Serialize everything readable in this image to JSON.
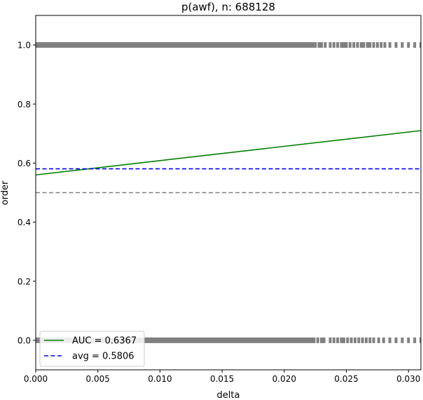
{
  "chart_data": {
    "type": "scatter",
    "title": "p(awf), n: 688128",
    "xlabel": "delta",
    "ylabel": "order",
    "xlim": [
      0.0,
      0.031
    ],
    "ylim": [
      -0.1,
      1.1
    ],
    "xticks": [
      0.0,
      0.005,
      0.01,
      0.015,
      0.02,
      0.025,
      0.03
    ],
    "xtick_labels": [
      "0.000",
      "0.005",
      "0.010",
      "0.015",
      "0.020",
      "0.025",
      "0.030"
    ],
    "yticks": [
      0.0,
      0.2,
      0.4,
      0.6,
      0.8,
      1.0
    ],
    "ytick_labels": [
      "0.0",
      "0.2",
      "0.4",
      "0.6",
      "0.8",
      "1.0"
    ],
    "grid": false,
    "legend_position": "bottom-left",
    "series": [
      {
        "kind": "points",
        "color": "#808080",
        "y": 1.0,
        "dense_range": [
          0.0,
          0.0224
        ],
        "x": [
          0.0225,
          0.0228,
          0.023,
          0.0233,
          0.0237,
          0.024,
          0.0243,
          0.0246,
          0.0248,
          0.025,
          0.0253,
          0.0256,
          0.0259,
          0.0262,
          0.0264,
          0.0267,
          0.0269,
          0.0272,
          0.0275,
          0.0278,
          0.0281,
          0.0285,
          0.029,
          0.0295,
          0.03,
          0.0305,
          0.031
        ]
      },
      {
        "kind": "points",
        "color": "#808080",
        "y": 0.0,
        "dense_range": [
          0.0,
          0.0223
        ],
        "x": [
          0.0224,
          0.0227,
          0.023,
          0.0232,
          0.0237,
          0.024,
          0.0243,
          0.0246,
          0.0248,
          0.0251,
          0.0254,
          0.0257,
          0.026,
          0.0263,
          0.0266,
          0.0269,
          0.0272,
          0.0276,
          0.028,
          0.0285,
          0.029,
          0.0295,
          0.03,
          0.0305,
          0.031
        ]
      },
      {
        "name": "AUC = 0.6367",
        "kind": "line",
        "color": "#008000",
        "dash": "solid",
        "x": [
          0.0,
          0.031
        ],
        "y": [
          0.56,
          0.71
        ]
      },
      {
        "name": "avg = 0.5806",
        "kind": "hline",
        "color": "#0000ff",
        "dash": "dashed",
        "y": 0.5806
      },
      {
        "kind": "hline",
        "color": "#808080",
        "dash": "dashed",
        "y": 0.5
      }
    ]
  }
}
